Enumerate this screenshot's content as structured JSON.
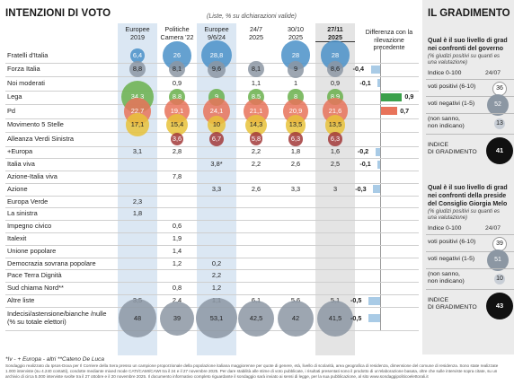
{
  "title": "INTENZIONI DI VOTO",
  "subtitle": "(Liste, % su dichiarazioni valide)",
  "column_headers": [
    {
      "line1": "Europee",
      "line2": "2019",
      "bold": false
    },
    {
      "line1": "Politiche",
      "line2": "Camera '22",
      "bold": false
    },
    {
      "line1": "Europee",
      "line2": "9/6/24",
      "bold": false
    },
    {
      "line1": "24/7",
      "line2": "2025",
      "bold": false
    },
    {
      "line1": "30/10",
      "line2": "2025",
      "bold": false
    },
    {
      "line1": "27/11",
      "line2": "2025",
      "bold": true
    }
  ],
  "diff_header": "Differenza con la rilevazione precedente",
  "colors": {
    "blue_bubble": "#4a90c8",
    "grey_bubble": "#8c97a3",
    "green_bubble": "#6ab04c",
    "orange_bubble": "#e8735a",
    "yellow_bubble": "#e8c23a",
    "darkred_bubble": "#a23a3a",
    "light_blue_bar": "#a9cbe6",
    "green_bar": "#3aa04a",
    "orange_bar": "#e8735a",
    "panel_bg": "#ebebeb"
  },
  "chart_data": {
    "type": "table",
    "columns": [
      "Europee 2019",
      "Politiche Camera '22",
      "Europee 9/6/24",
      "24/7 2025",
      "30/10 2025",
      "27/11 2025"
    ],
    "rows": [
      {
        "label": "Fratelli d'Italia",
        "values": [
          "6,4",
          "26",
          "28,8",
          "",
          "28",
          "28"
        ],
        "diff": "",
        "diff_num": 0,
        "color": "blue_bubble",
        "bubble": true,
        "show_bubble": [
          true,
          true,
          true,
          false,
          true,
          true
        ]
      },
      {
        "label": "Forza Italia",
        "values": [
          "8,8",
          "8,1",
          "9,6",
          "8,1",
          "9",
          "8,6"
        ],
        "diff": "-0,4",
        "diff_num": -0.4,
        "color": "grey_bubble",
        "bubble": true
      },
      {
        "label": "Noi moderati",
        "values": [
          "",
          "0,9",
          "",
          "1,1",
          "1",
          "0,9"
        ],
        "diff": "-0,1",
        "diff_num": -0.1,
        "color": "grey_bubble",
        "bubble": false
      },
      {
        "label": "Lega",
        "values": [
          "34,3",
          "8,8",
          "9",
          "8,5",
          "8",
          "8,9"
        ],
        "diff": "0,9",
        "diff_num": 0.9,
        "color": "green_bubble",
        "bubble": true
      },
      {
        "label": "Pd",
        "values": [
          "22,7",
          "19,1",
          "24,1",
          "21,1",
          "20,9",
          "21,6"
        ],
        "diff": "0,7",
        "diff_num": 0.7,
        "color": "orange_bubble",
        "bubble": true
      },
      {
        "label": "Movimento 5 Stelle",
        "values": [
          "17,1",
          "15,4",
          "10",
          "14,3",
          "13,5",
          "13,5"
        ],
        "diff": "",
        "diff_num": 0,
        "color": "yellow_bubble",
        "bubble": true
      },
      {
        "label": "Alleanza Verdi Sinistra",
        "values": [
          "",
          "3,6",
          "6,7",
          "5,8",
          "6,3",
          "6,3"
        ],
        "diff": "",
        "diff_num": 0,
        "color": "darkred_bubble",
        "bubble": true
      },
      {
        "label": "+Europa",
        "values": [
          "3,1",
          "2,8",
          "",
          "2,2",
          "1,8",
          "1,6"
        ],
        "diff": "-0,2",
        "diff_num": -0.2,
        "color": "grey_bubble",
        "bubble": false
      },
      {
        "label": "Italia viva",
        "values": [
          "",
          "",
          "3,8*",
          "2,2",
          "2,6",
          "2,5"
        ],
        "diff": "-0,1",
        "diff_num": -0.1,
        "color": "grey_bubble",
        "bubble": false
      },
      {
        "label": "Azione-Italia viva",
        "values": [
          "",
          "7,8",
          "",
          "",
          "",
          ""
        ],
        "diff": "",
        "diff_num": 0,
        "color": "grey_bubble",
        "bubble": false
      },
      {
        "label": "Azione",
        "values": [
          "",
          "",
          "3,3",
          "2,6",
          "3,3",
          "3"
        ],
        "diff": "-0,3",
        "diff_num": -0.3,
        "color": "grey_bubble",
        "bubble": false
      },
      {
        "label": "Europa Verde",
        "values": [
          "2,3",
          "",
          "",
          "",
          "",
          ""
        ],
        "diff": "",
        "diff_num": 0,
        "color": "grey_bubble",
        "bubble": false
      },
      {
        "label": "La sinistra",
        "values": [
          "1,8",
          "",
          "",
          "",
          "",
          ""
        ],
        "diff": "",
        "diff_num": 0,
        "color": "grey_bubble",
        "bubble": false
      },
      {
        "label": "Impegno civico",
        "values": [
          "",
          "0,6",
          "",
          "",
          "",
          ""
        ],
        "diff": "",
        "diff_num": 0,
        "color": "grey_bubble",
        "bubble": false
      },
      {
        "label": "Italexit",
        "values": [
          "",
          "1,9",
          "",
          "",
          "",
          ""
        ],
        "diff": "",
        "diff_num": 0,
        "color": "grey_bubble",
        "bubble": false
      },
      {
        "label": "Unione popolare",
        "values": [
          "",
          "1,4",
          "",
          "",
          "",
          ""
        ],
        "diff": "",
        "diff_num": 0,
        "color": "grey_bubble",
        "bubble": false
      },
      {
        "label": "Democrazia sovrana popolare",
        "values": [
          "",
          "1,2",
          "0,2",
          "",
          "",
          ""
        ],
        "diff": "",
        "diff_num": 0,
        "color": "grey_bubble",
        "bubble": false
      },
      {
        "label": "Pace Terra Dignità",
        "values": [
          "",
          "",
          "2,2",
          "",
          "",
          ""
        ],
        "diff": "",
        "diff_num": 0,
        "color": "grey_bubble",
        "bubble": false
      },
      {
        "label": "Sud chiama Nord**",
        "values": [
          "",
          "0,8",
          "1,2",
          "",
          "",
          ""
        ],
        "diff": "",
        "diff_num": 0,
        "color": "grey_bubble",
        "bubble": false
      },
      {
        "label": "Altre liste",
        "values": [
          "3,5",
          "2,4",
          "1,1",
          "6,1",
          "5,6",
          "5,1"
        ],
        "diff": "-0,5",
        "diff_num": -0.5,
        "color": "grey_bubble",
        "bubble": false
      },
      {
        "label": "Indecisi/astensione/bianche /nulle (% su totale elettori)",
        "values": [
          "48",
          "39",
          "53,1",
          "42,5",
          "42",
          "41,5"
        ],
        "diff": "-0,5",
        "diff_num": -0.5,
        "color": "grey_bubble",
        "bubble": true
      }
    ]
  },
  "footnote": "*Iv - + Europa - altri  **Cateno De Luca",
  "source": "Sondaggio realizzato da Ipsos-Doxa per Il Corriere della Sera presso un campione proporzionale della popolazione italiana maggiorenne per quote di genere, età, livello di scolarità, area geografica di residenza, dimensione del comune di residenza. Sono state realizzate 1.000 interviste (su 4.240 contatti), condotte mediante mixed mode CATI/CAMI/CAWI tra il 24 e il 27 novembre 2025. Per dare stabilità alle stime di voto pubblicate, i risultati presentati sono il prodotto di un'elaborazione basata, oltre che sulle interviste sopra citate, su un archivio di circa 5.000 interviste svolte tra il 27 ottobre e il 20 novembre 2025. Il documento informativo completo riguardante il sondaggio sarà inviato ai sensi di legge, per la sua pubblicazione, al sito www.sondaggipoliticoelettorali.it",
  "right_panel": {
    "title": "IL GRADIMENTO",
    "block1": {
      "question": [
        "Qual è il suo livello di grad",
        "nei confronti del governo"
      ],
      "note": [
        "(% giudizi positivi su quanti es",
        "una valutazione)"
      ],
      "index_label": "Indice 0-100",
      "date": "24/07",
      "positive_label": "voti positivi (6-10)",
      "positive_value": "36",
      "negative_label": "voti negativi (1-5)",
      "negative_value": "52",
      "unknown_label": [
        "(non sanno,",
        "non indicano)"
      ],
      "unknown_value": "13",
      "gradimento_label": [
        "INDICE",
        "DI GRADIMENTO"
      ],
      "gradimento_value": "41"
    },
    "block2": {
      "question": [
        "Qual è il suo livello di grad",
        "nei confronti della preside",
        "del Consiglio Giorgia Melo"
      ],
      "note": [
        "(% giudizi positivi su quanti es",
        "una valutazione)"
      ],
      "index_label": "Indice 0-100",
      "date": "24/07",
      "positive_label": "voti positivi (6-10)",
      "positive_value": "39",
      "negative_label": "voti negativi (1-5)",
      "negative_value": "51",
      "unknown_label": [
        "(non sanno,",
        "non indicano)"
      ],
      "unknown_value": "10",
      "gradimento_label": [
        "INDICE",
        "DI GRADIMENTO"
      ],
      "gradimento_value": "43"
    }
  }
}
